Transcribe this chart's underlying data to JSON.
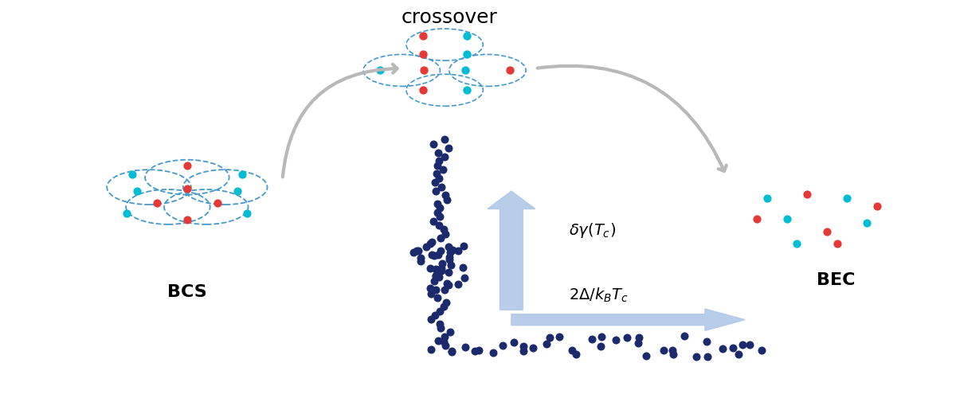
{
  "fig_width": 12.0,
  "fig_height": 5.0,
  "dpi": 100,
  "bg_color": "#ffffff",
  "dark_blue": "#1a2a6c",
  "cyan": "#00bcd4",
  "red": "#e53935",
  "arrow_color": "#b8b8b8",
  "blue_arrow_color": "#b0c8e8",
  "title_fontsize": 18,
  "label_fontsize": 16,
  "crossover_label": "crossover",
  "bcs_label": "BCS",
  "bec_label": "BEC"
}
